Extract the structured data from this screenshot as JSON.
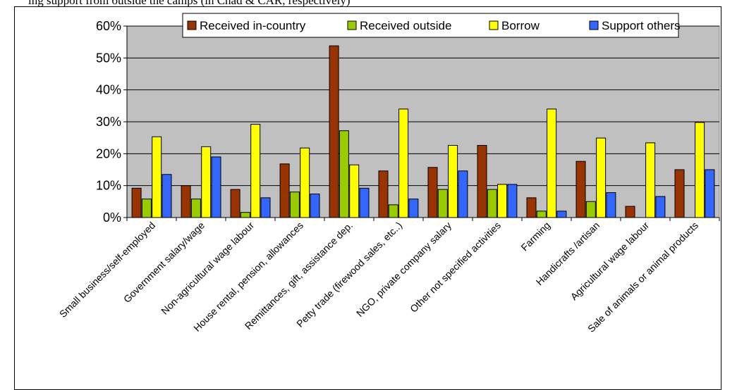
{
  "caption": "ing support from outside the camps (in Chad & CAR, respectively)",
  "chart_data": {
    "type": "bar",
    "title": "",
    "xlabel": "",
    "ylabel": "",
    "ylim": [
      0,
      0.6
    ],
    "yticks": [
      "0%",
      "10%",
      "20%",
      "30%",
      "40%",
      "50%",
      "60%"
    ],
    "grid": true,
    "legend_position": "top",
    "categories": [
      "Small business/self-employed",
      "Government salary/wage",
      "Non-agricultural wage labour",
      "House rental, pension, allowances",
      "Remittances, gift, assistance dep.",
      "Petty trade (firewood sales, etc..)",
      "NGO, private company salary",
      "Other not specified activities",
      "Farming",
      "Handicrafts /artisan",
      "Agricultural wage labour",
      "Sale of animals or animal products"
    ],
    "series": [
      {
        "name": "Received in-country",
        "color": "#993300",
        "values": [
          0.092,
          0.1,
          0.088,
          0.168,
          0.538,
          0.146,
          0.157,
          0.226,
          0.062,
          0.176,
          0.035,
          0.15
        ]
      },
      {
        "name": "Received outside",
        "color": "#99cc00",
        "values": [
          0.058,
          0.058,
          0.016,
          0.08,
          0.272,
          0.04,
          0.088,
          0.088,
          0.02,
          0.05,
          0,
          0
        ]
      },
      {
        "name": "Borrow",
        "color": "#ffff00",
        "values": [
          0.253,
          0.222,
          0.292,
          0.218,
          0.165,
          0.34,
          0.226,
          0.104,
          0.34,
          0.249,
          0.234,
          0.298
        ]
      },
      {
        "name": "Support others",
        "color": "#3366ff",
        "values": [
          0.135,
          0.19,
          0.062,
          0.074,
          0.092,
          0.058,
          0.146,
          0.104,
          0.02,
          0.078,
          0.066,
          0.15
        ]
      }
    ]
  }
}
